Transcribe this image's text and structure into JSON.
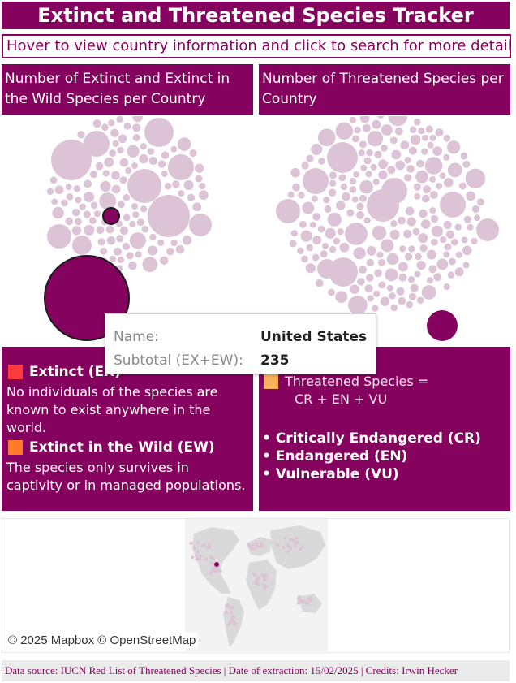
{
  "header": {
    "title": "Extinct and Threatened Species Tracker",
    "instruction": "Hover to view country information and click to search for more details."
  },
  "panels": {
    "left_title": "Number of Extinct and Extinct in the Wild Species per Country",
    "right_title": "Number of Threatened Species per Country"
  },
  "colors": {
    "brand": "#85035f",
    "bubble": "#dcc4d6",
    "highlight": "#85035f",
    "extinct_swatch": "#ff3b3b",
    "extinct_wild_swatch": "#ff7a2a",
    "threatened_swatch": "#f7b25a"
  },
  "tooltip": {
    "name_label": "Name:",
    "name_value": "United States",
    "subtotal_label": "Subtotal (EX+EW):",
    "subtotal_value": "235"
  },
  "legend_left": {
    "extinct_label": "Extinct (EX)",
    "extinct_desc": "No individuals of the species are known to exist anywhere in the world.",
    "ew_label": "Extinct in the Wild (EW)",
    "ew_desc": "The species only survives in captivity or in managed populations."
  },
  "legend_right": {
    "threatened_line1": "Threatened Species =",
    "threatened_line2": "CR + EN + VU",
    "cr": "• Critically Endangered (CR)",
    "en": "• Endangered (EN)",
    "vu": "• Vulnerable (VU)"
  },
  "map": {
    "attribution": "© 2025 Mapbox © OpenStreetMap"
  },
  "footer": {
    "text": "Data source: IUCN Red List of Threatened Species | Date of extraction: 15/02/2025 | Credits: Irwin Hecker"
  }
}
